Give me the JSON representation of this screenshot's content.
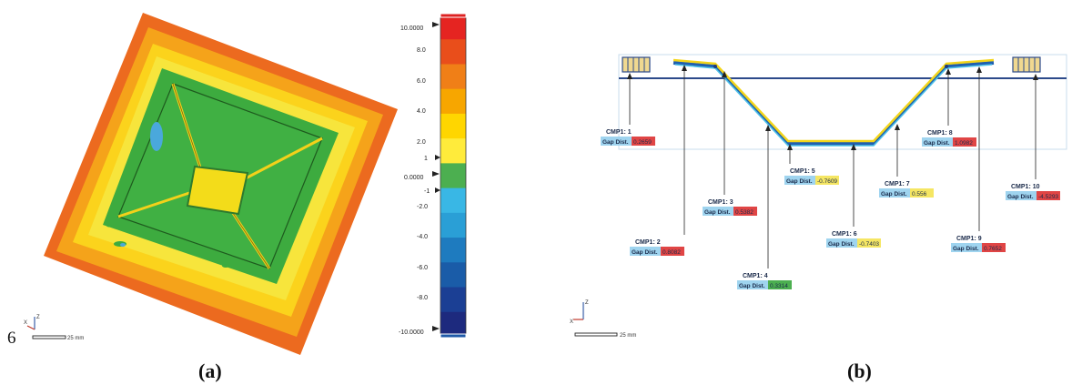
{
  "panel_a": {
    "caption": "(a)",
    "corner_mark": "6",
    "scale_bar_label": "25 mm",
    "axis_labels": {
      "x": "X",
      "z": "Z"
    },
    "color_scale": {
      "top_value": "10.0000",
      "bottom_value": "-10.0000",
      "zero_value": "0.0000",
      "ticks": [
        "8.0",
        "6.0",
        "4.0",
        "2.0",
        "1",
        "-1",
        "-2.0",
        "-4.0",
        "-6.0",
        "-8.0"
      ],
      "colors": [
        "#e52421",
        "#e94e1b",
        "#f07f17",
        "#f7a600",
        "#ffd600",
        "#ffeb3b",
        "#4caf50",
        "#39b7e5",
        "#2a9fd6",
        "#1e7bbf",
        "#1a5ca8",
        "#1b3f94",
        "#1d2a7e"
      ]
    }
  },
  "panel_b": {
    "caption": "(b)",
    "scale_bar_label": "25 mm",
    "axis_labels": {
      "x": "X",
      "z": "Z"
    },
    "callouts": [
      {
        "title": "CMP1: 1",
        "label": "Gap Dist.",
        "value": "0.2659",
        "color": "#e04545"
      },
      {
        "title": "CMP1: 2",
        "label": "Gap Dist.",
        "value": "0.8082",
        "color": "#e04545"
      },
      {
        "title": "CMP1: 3",
        "label": "Gap Dist.",
        "value": "0.5382",
        "color": "#e04545"
      },
      {
        "title": "CMP1: 4",
        "label": "Gap Dist.",
        "value": "0.3314",
        "color": "#4caf50"
      },
      {
        "title": "CMP1: 5",
        "label": "Gap Dist.",
        "value": "-0.7609",
        "color": "#f5e663"
      },
      {
        "title": "CMP1: 6",
        "label": "Gap Dist.",
        "value": "-0.7403",
        "color": "#f5e663"
      },
      {
        "title": "CMP1: 7",
        "label": "Gap Dist.",
        "value": "0.556",
        "color": "#f5e663"
      },
      {
        "title": "CMP1: 8",
        "label": "Gap Dist.",
        "value": "1.0982",
        "color": "#e04545"
      },
      {
        "title": "CMP1: 9",
        "label": "Gap Dist.",
        "value": "0.7652",
        "color": "#e04545"
      },
      {
        "title": "CMP1: 10",
        "label": "Gap Dist.",
        "value": "-4.5293",
        "color": "#e04545"
      }
    ]
  }
}
